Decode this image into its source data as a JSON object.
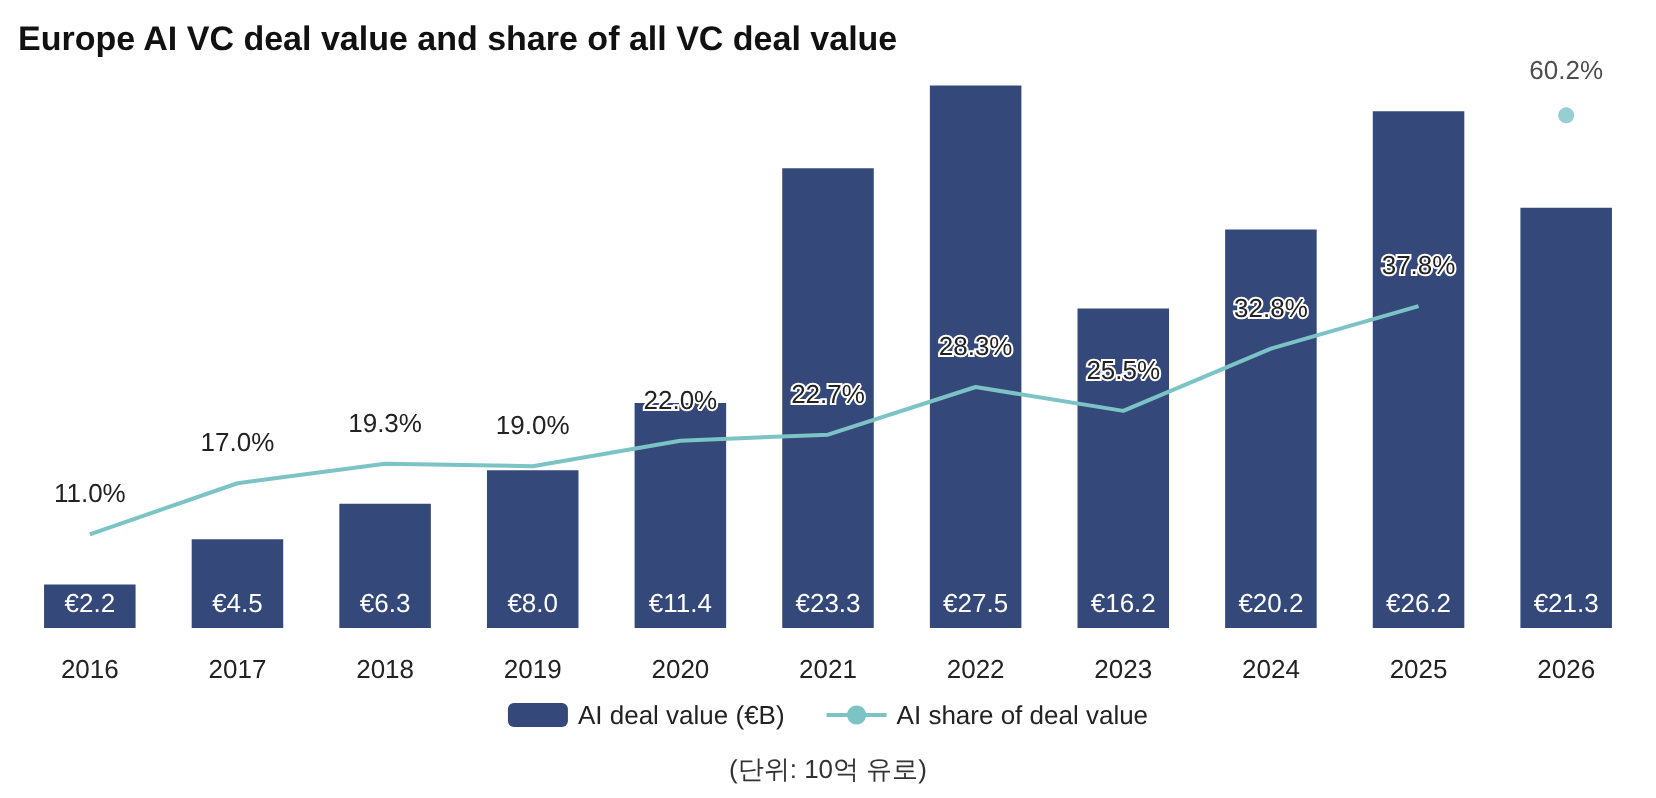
{
  "chart_data": {
    "type": "bar",
    "title": "Europe AI VC deal value and share of all VC deal value",
    "categories": [
      "2016",
      "2017",
      "2018",
      "2019",
      "2020",
      "2021",
      "2022",
      "2023",
      "2024",
      "2025",
      "2026"
    ],
    "series": [
      {
        "name": "AI deal value (€B)",
        "color": "#34497a",
        "values": [
          2.2,
          4.5,
          6.3,
          8.0,
          11.4,
          23.3,
          27.5,
          16.2,
          20.2,
          26.2,
          21.3
        ],
        "value_labels": [
          "€2.2",
          "€4.5",
          "€6.3",
          "€8.0",
          "€11.4",
          "€23.3",
          "€27.5",
          "€16.2",
          "€20.2",
          "€26.2",
          "€21.3"
        ]
      },
      {
        "name": "AI share of deal value",
        "type": "line",
        "axis": "y2",
        "color": "#7cc3c6",
        "marker": "none",
        "values": [
          11.0,
          17.0,
          19.3,
          19.0,
          22.0,
          22.7,
          28.3,
          25.5,
          32.8,
          37.8,
          null
        ],
        "value_labels": [
          "11.0%",
          "17.0%",
          "19.3%",
          "19.0%",
          "22.0%",
          "22.7%",
          "28.3%",
          "25.5%",
          "32.8%",
          "37.8%",
          null
        ]
      },
      {
        "type": "scatter",
        "axis": "y2",
        "color": "#7cc3c6",
        "marker": "circle",
        "values": [
          null,
          null,
          null,
          null,
          null,
          null,
          null,
          null,
          null,
          null,
          60.2
        ],
        "value_labels": [
          null,
          null,
          null,
          null,
          null,
          null,
          null,
          null,
          null,
          null,
          "60.2%"
        ]
      }
    ],
    "tick_labels": "x",
    "grid": false,
    "legend": "bottom",
    "annotations": [
      "(단위: 10억 유로)"
    ]
  }
}
